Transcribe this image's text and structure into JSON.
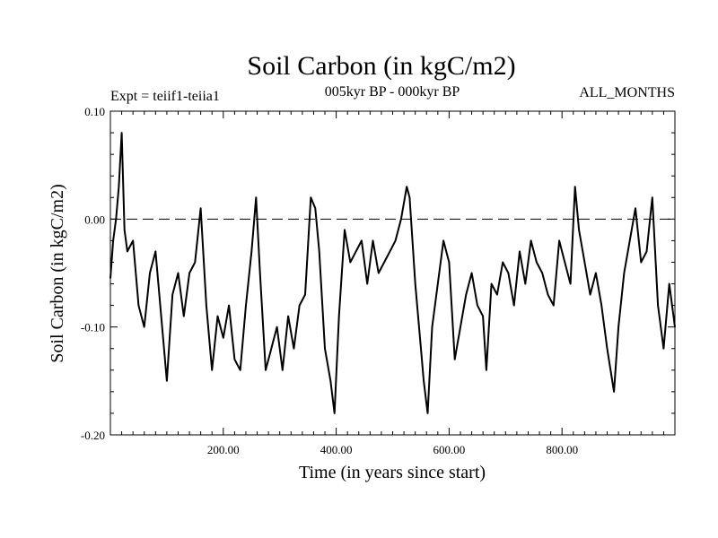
{
  "chart_data": {
    "type": "line",
    "title": "Soil Carbon (in kgC/m2)",
    "subtitle_left": "Expt = teiif1-teiia1",
    "subtitle_center": "005kyr BP - 000kyr BP",
    "subtitle_right": "ALL_MONTHS",
    "xlabel": "Time (in years since start)",
    "ylabel": "Soil Carbon (in kgC/m2)",
    "xlim": [
      0,
      1000
    ],
    "ylim": [
      -0.2,
      0.1
    ],
    "x_tick_values": [
      200,
      400,
      600,
      800
    ],
    "x_tick_labels": [
      "200.00",
      "400.00",
      "600.00",
      "800.00"
    ],
    "y_tick_values": [
      0.1,
      0.0,
      -0.1,
      -0.2
    ],
    "y_tick_labels": [
      "0.10",
      "0.00",
      "-0.10",
      "-0.20"
    ],
    "reference_line": 0.0,
    "series": [
      {
        "x": [
          0,
          5,
          10,
          15,
          20,
          25,
          30,
          40,
          50,
          60,
          70,
          80,
          90,
          100,
          110,
          120,
          130,
          140,
          150,
          160,
          170,
          180,
          190,
          200,
          210,
          220,
          230,
          240,
          250,
          258,
          265,
          275,
          285,
          295,
          305,
          315,
          325,
          335,
          345,
          355,
          363,
          370,
          380,
          390,
          397,
          405,
          415,
          425,
          435,
          445,
          455,
          465,
          475,
          485,
          495,
          505,
          515,
          525,
          530,
          540,
          550,
          555,
          562,
          570,
          580,
          590,
          600,
          610,
          620,
          630,
          640,
          650,
          660,
          666,
          675,
          685,
          695,
          705,
          715,
          725,
          735,
          745,
          755,
          765,
          775,
          785,
          795,
          805,
          815,
          823,
          830,
          840,
          850,
          860,
          870,
          880,
          892,
          900,
          910,
          920,
          930,
          940,
          950,
          960,
          970,
          980,
          990,
          1000
        ],
        "y": [
          -0.055,
          -0.02,
          0.0,
          0.03,
          0.08,
          -0.01,
          -0.03,
          -0.02,
          -0.08,
          -0.1,
          -0.05,
          -0.03,
          -0.09,
          -0.15,
          -0.07,
          -0.05,
          -0.09,
          -0.05,
          -0.04,
          0.01,
          -0.08,
          -0.14,
          -0.09,
          -0.11,
          -0.08,
          -0.13,
          -0.14,
          -0.08,
          -0.03,
          0.02,
          -0.05,
          -0.14,
          -0.12,
          -0.1,
          -0.14,
          -0.09,
          -0.12,
          -0.08,
          -0.07,
          0.02,
          0.01,
          -0.03,
          -0.12,
          -0.15,
          -0.18,
          -0.09,
          -0.01,
          -0.04,
          -0.03,
          -0.02,
          -0.06,
          -0.02,
          -0.05,
          -0.04,
          -0.03,
          -0.02,
          0.0,
          0.03,
          0.02,
          -0.06,
          -0.12,
          -0.15,
          -0.18,
          -0.1,
          -0.06,
          -0.02,
          -0.04,
          -0.13,
          -0.1,
          -0.07,
          -0.05,
          -0.08,
          -0.09,
          -0.14,
          -0.06,
          -0.07,
          -0.04,
          -0.05,
          -0.08,
          -0.03,
          -0.06,
          -0.02,
          -0.04,
          -0.05,
          -0.07,
          -0.08,
          -0.02,
          -0.04,
          -0.06,
          0.03,
          -0.01,
          -0.04,
          -0.07,
          -0.05,
          -0.08,
          -0.12,
          -0.16,
          -0.1,
          -0.05,
          -0.02,
          0.01,
          -0.04,
          -0.03,
          0.02,
          -0.08,
          -0.12,
          -0.06,
          -0.1
        ]
      }
    ]
  }
}
